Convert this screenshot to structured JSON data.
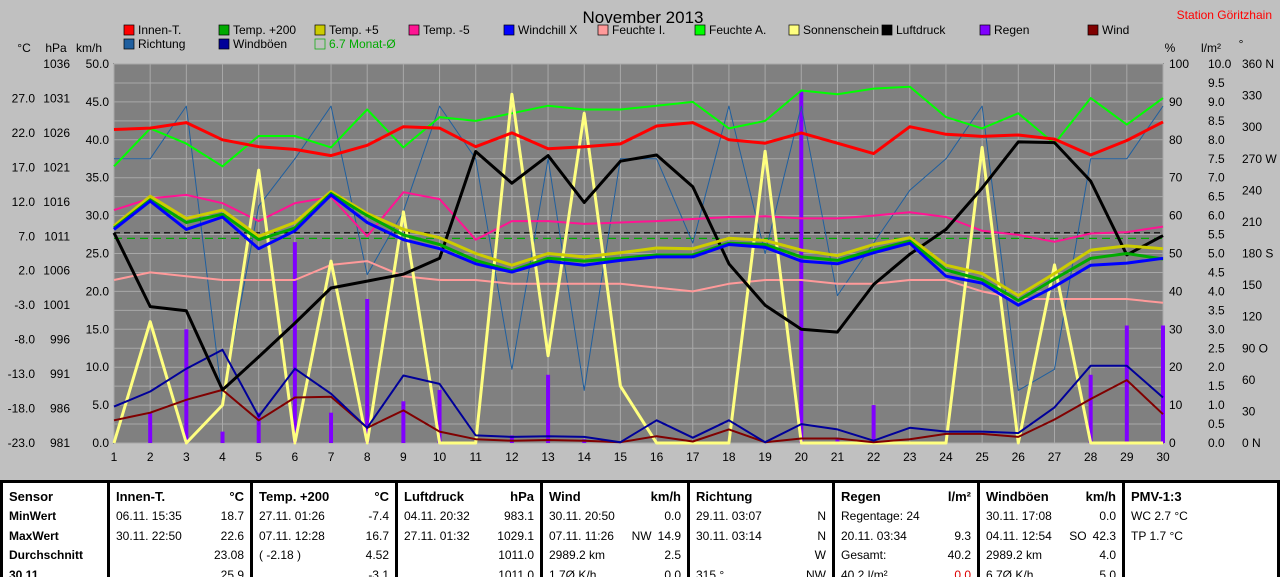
{
  "station": "Station Göritzhain",
  "chart_data": {
    "type": "line",
    "title": "November 2013",
    "days": [
      1,
      2,
      3,
      4,
      5,
      6,
      7,
      8,
      9,
      10,
      11,
      12,
      13,
      14,
      15,
      16,
      17,
      18,
      19,
      20,
      21,
      22,
      23,
      24,
      25,
      26,
      27,
      28,
      29,
      30
    ],
    "axes": {
      "celsius": {
        "label": "°C",
        "min": -23,
        "max": 32,
        "ticks": [
          "27.0",
          "22.0",
          "17.0",
          "12.0",
          "7.0",
          "2.0",
          "-3.0",
          "-8.0",
          "-13.0",
          "-18.0",
          "-23.0"
        ]
      },
      "hpa": {
        "label": "hPa",
        "min": 981,
        "max": 1036,
        "ticks": [
          "1036",
          "1031",
          "1026",
          "1021",
          "1016",
          "1011",
          "1006",
          "1001",
          "996",
          "991",
          "986",
          "981"
        ]
      },
      "kmh": {
        "label": "km/h",
        "min": 0,
        "max": 50,
        "ticks": [
          "50.0",
          "45.0",
          "40.0",
          "35.0",
          "30.0",
          "25.0",
          "20.0",
          "15.0",
          "10.0",
          "5.0",
          "0.0"
        ]
      },
      "percent": {
        "label": "%",
        "min": 0,
        "max": 100,
        "ticks": [
          "100",
          "90",
          "80",
          "70",
          "60",
          "50",
          "40",
          "30",
          "20",
          "10",
          "0"
        ]
      },
      "rain": {
        "label": "l/m²",
        "min": 0,
        "max": 10,
        "ticks": [
          "10.0",
          "9.5",
          "9.0",
          "8.5",
          "8.0",
          "7.5",
          "7.0",
          "6.5",
          "6.0",
          "5.5",
          "5.0",
          "4.5",
          "4.0",
          "3.5",
          "3.0",
          "2.5",
          "2.0",
          "1.5",
          "1.0",
          "0.5",
          "0.0"
        ]
      },
      "direction": {
        "label": "°",
        "min": 0,
        "max": 360,
        "ticks": [
          "360 N",
          "330",
          "300",
          "270 W",
          "240",
          "210",
          "180 S",
          "150",
          "120",
          "90 O",
          "60",
          "30",
          "0 N"
        ]
      }
    },
    "legend": [
      {
        "name": "Innen-T.",
        "color": "#ff0000"
      },
      {
        "name": "Temp. +200",
        "color": "#00aa00"
      },
      {
        "name": "Temp. +5",
        "color": "#cccc00"
      },
      {
        "name": "Temp. -5",
        "color": "#ff1493"
      },
      {
        "name": "Windchill X",
        "color": "#0000ff"
      },
      {
        "name": "Feuchte I.",
        "color": "#ff9a9a"
      },
      {
        "name": "Feuchte A.",
        "color": "#00ff00"
      },
      {
        "name": "Sonnenschein",
        "color": "#ffff80"
      },
      {
        "name": "Luftdruck",
        "color": "#000000"
      },
      {
        "name": "Regen",
        "color": "#8000ff"
      },
      {
        "name": "Wind",
        "color": "#800000"
      },
      {
        "name": "Richtung",
        "color": "#1f5f9f"
      },
      {
        "name": "Windböen",
        "color": "#000099"
      },
      {
        "name": "6.7 Monat-Ø",
        "color": "#00aa00"
      }
    ],
    "series": [
      {
        "name": "Innen-T.",
        "axis": "celsius",
        "color": "#ff0000",
        "width": 3,
        "values": [
          22.5,
          22.7,
          23.5,
          21.0,
          20.0,
          19.6,
          18.7,
          20.2,
          22.9,
          22.7,
          20.0,
          22.0,
          19.7,
          20.0,
          20.4,
          23.0,
          23.5,
          21.0,
          20.5,
          22.0,
          20.5,
          19.0,
          22.9,
          21.8,
          21.5,
          21.7,
          21.1,
          18.8,
          20.9,
          23.6
        ]
      },
      {
        "name": "Feuchte A.",
        "axis": "percent",
        "color": "#00ff00",
        "width": 2,
        "values": [
          73,
          83,
          79,
          73,
          81,
          81,
          78,
          88,
          78,
          86,
          85,
          87,
          89,
          88,
          88,
          89,
          90,
          83,
          85,
          93,
          92,
          93.5,
          94,
          86,
          83,
          87,
          79,
          91,
          84,
          91
        ]
      },
      {
        "name": "Temp. +5",
        "axis": "celsius",
        "color": "#cccc00",
        "width": 3,
        "values": [
          8.5,
          12.8,
          9.6,
          10.8,
          7.0,
          9.0,
          13.5,
          10.3,
          8.0,
          6.8,
          4.5,
          2.8,
          4.5,
          4.0,
          4.6,
          5.3,
          5.2,
          6.7,
          6.4,
          5.0,
          4.2,
          5.8,
          6.8,
          2.8,
          1.6,
          -1.6,
          1.6,
          5.0,
          5.6,
          5.2
        ]
      },
      {
        "name": "Temp. +200",
        "axis": "celsius",
        "color": "#00aa00",
        "width": 3,
        "values": [
          8.2,
          12.3,
          9.0,
          10.2,
          6.5,
          8.2,
          13.2,
          10.0,
          7.2,
          5.8,
          3.5,
          2.0,
          3.8,
          3.4,
          3.8,
          4.3,
          4.3,
          6.0,
          5.8,
          4.0,
          3.5,
          5.0,
          6.3,
          2.1,
          0.7,
          -2.3,
          0.8,
          3.8,
          4.5,
          3.7
        ]
      },
      {
        "name": "Windchill X",
        "axis": "celsius",
        "color": "#0000ff",
        "width": 3,
        "values": [
          8.0,
          12.1,
          8.0,
          9.8,
          5.2,
          7.8,
          13.0,
          9.0,
          6.5,
          5.2,
          3.0,
          1.8,
          3.4,
          2.8,
          3.5,
          4.0,
          4.0,
          5.8,
          5.4,
          3.4,
          3.0,
          4.6,
          6.0,
          1.2,
          0.2,
          -3.0,
          -0.3,
          2.8,
          3.1,
          3.8
        ]
      },
      {
        "name": "Temp. -5",
        "axis": "celsius",
        "color": "#ff1493",
        "width": 2,
        "values": [
          10.8,
          12.5,
          13.0,
          11.8,
          9.2,
          11.8,
          12.7,
          7.0,
          13.4,
          12.4,
          6.5,
          9.2,
          9.2,
          8.8,
          9.0,
          9.2,
          9.5,
          9.8,
          9.9,
          9.6,
          9.6,
          10.0,
          10.5,
          9.8,
          7.8,
          7.2,
          6.2,
          7.4,
          7.6,
          8.4
        ]
      },
      {
        "name": "Feuchte I.",
        "axis": "percent",
        "color": "#ff9a9a",
        "width": 2,
        "values": [
          43,
          45,
          44,
          43,
          43,
          43,
          47,
          48,
          44,
          43,
          43,
          42,
          42,
          42,
          42,
          41,
          40,
          42,
          43,
          43,
          42,
          42,
          43,
          43,
          40,
          38,
          38,
          38,
          38,
          37
        ]
      },
      {
        "name": "Luftdruck",
        "axis": "hpa",
        "color": "#000000",
        "width": 3,
        "values": [
          1011.5,
          1000.8,
          1000.2,
          988.7,
          993.5,
          998.4,
          1003.5,
          1004.5,
          1005.5,
          1007.8,
          1023.3,
          1018.7,
          1022.7,
          1015.9,
          1021.9,
          1022.8,
          1018.2,
          1007.0,
          1001.0,
          997.5,
          997.1,
          1004.0,
          1008.4,
          1012.0,
          1018.0,
          1024.7,
          1024.6,
          1019.0,
          1008.3,
          1011.1
        ]
      },
      {
        "name": "Sonnenschein",
        "axis": "rain",
        "color": "#ffff80",
        "width": 3,
        "values": [
          0.0,
          3.2,
          0.0,
          1.0,
          7.2,
          0.0,
          4.8,
          0.0,
          6.1,
          0.0,
          0.0,
          9.2,
          2.3,
          8.7,
          1.5,
          0.0,
          0.0,
          0.0,
          7.7,
          0.0,
          0.0,
          0.0,
          0.0,
          0.0,
          7.8,
          0.0,
          4.7,
          0.0,
          0.0,
          0.0
        ]
      },
      {
        "name": "Richtung",
        "axis": "direction",
        "color": "#1f5f9f",
        "width": 1,
        "values": [
          270,
          270,
          320,
          40,
          225,
          270,
          320,
          160,
          220,
          320,
          270,
          70,
          270,
          50,
          270,
          270,
          190,
          320,
          180,
          320,
          140,
          190,
          240,
          270,
          320,
          50,
          70,
          270,
          270,
          320
        ]
      },
      {
        "name": "Windböen",
        "axis": "kmh",
        "color": "#000099",
        "width": 2,
        "values": [
          4.8,
          6.8,
          9.8,
          12.3,
          3.5,
          9.8,
          6.5,
          2.0,
          8.9,
          7.8,
          1.0,
          0.8,
          0.9,
          0.8,
          0.1,
          3.0,
          0.7,
          3.0,
          0.1,
          2.5,
          1.8,
          0.3,
          2.0,
          1.5,
          1.5,
          1.3,
          4.7,
          10.2,
          10.2,
          6.0
        ]
      },
      {
        "name": "Wind",
        "axis": "kmh",
        "color": "#800000",
        "width": 2,
        "values": [
          3.0,
          4.0,
          5.7,
          7.0,
          3.0,
          6.0,
          6.1,
          2.0,
          4.3,
          1.5,
          0.5,
          0.3,
          0.4,
          0.3,
          0.1,
          0.9,
          0.2,
          1.8,
          0.1,
          0.6,
          0.6,
          0.1,
          0.5,
          1.2,
          1.2,
          0.8,
          3.1,
          5.8,
          8.3,
          3.8
        ]
      }
    ],
    "rain_bars": {
      "name": "Regen",
      "axis": "rain",
      "color": "#8000ff",
      "values": [
        0.0,
        0.8,
        3.0,
        0.3,
        0.8,
        5.3,
        0.8,
        3.8,
        1.1,
        1.4,
        0.0,
        0.2,
        1.8,
        0.1,
        0.0,
        0.0,
        0.0,
        0.0,
        0.0,
        9.3,
        0.1,
        1.0,
        0.0,
        0.0,
        0.0,
        0.0,
        0.0,
        1.8,
        3.1,
        3.1
      ]
    },
    "reference_lines": [
      {
        "axis": "celsius",
        "value": 6.7,
        "color": "#00aa00",
        "dash": "8,5"
      },
      {
        "axis": "celsius",
        "value": 7.5,
        "color": "#000000",
        "dash": "6,4"
      }
    ]
  },
  "stats": {
    "rows": [
      "Sensor",
      "MinWert",
      "MaxWert",
      "Durchschnitt",
      "30.11."
    ],
    "panels": [
      {
        "title": "Innen-T.",
        "unit": "°C",
        "rows": [
          [
            "06.11. 15:35",
            "",
            "18.7"
          ],
          [
            "30.11. 22:50",
            "",
            "22.6"
          ],
          [
            "",
            "",
            "23.08"
          ],
          [
            "",
            "",
            "25.9"
          ]
        ]
      },
      {
        "title": "Temp. +200",
        "unit": "°C",
        "rows": [
          [
            "27.11. 01:26",
            "",
            "-7.4"
          ],
          [
            "07.11. 12:28",
            "",
            "16.7"
          ],
          [
            "( -2.18 )",
            "",
            "4.52"
          ],
          [
            "",
            "",
            "-3.1"
          ]
        ]
      },
      {
        "title": "Luftdruck",
        "unit": "hPa",
        "rows": [
          [
            "04.11. 20:32",
            "",
            "983.1"
          ],
          [
            "27.11. 01:32",
            "",
            "1029.1"
          ],
          [
            "",
            "",
            "1011.0"
          ],
          [
            "",
            "",
            "1011.0"
          ]
        ]
      },
      {
        "title": "Wind",
        "unit": "km/h",
        "rows": [
          [
            "30.11. 20:50",
            "",
            "0.0"
          ],
          [
            "07.11. 11:26",
            "NW",
            "14.9"
          ],
          [
            "2989.2 km",
            "",
            "2.5"
          ],
          [
            "1.7Ø K/h",
            "",
            "0.0"
          ]
        ]
      },
      {
        "title": "Richtung",
        "unit": "",
        "rows": [
          [
            "29.11. 03:07",
            "",
            "N"
          ],
          [
            "30.11. 03:14",
            "",
            "N"
          ],
          [
            "",
            "",
            "W"
          ],
          [
            "315 °",
            "",
            "NW"
          ]
        ]
      },
      {
        "title": "Regen",
        "unit": "l/m²",
        "rows": [
          [
            "Regentage: 24",
            "",
            ""
          ],
          [
            "20.11. 03:34",
            "",
            "9.3"
          ],
          [
            "Gesamt:",
            "",
            "40.2"
          ],
          [
            "40.2 l/m²",
            "",
            "0.0"
          ]
        ]
      },
      {
        "title": "Windböen",
        "unit": "km/h",
        "rows": [
          [
            "30.11. 17:08",
            "",
            "0.0"
          ],
          [
            "04.11. 12:54",
            "SO",
            "42.3"
          ],
          [
            "2989.2 km",
            "",
            "4.0"
          ],
          [
            "6.7Ø K/h",
            "",
            "5.0"
          ]
        ]
      },
      {
        "title": "PMV-1:3",
        "unit": "",
        "rows": [
          [
            "WC 2.7 °C",
            "",
            ""
          ],
          [
            "TP 1.7 °C",
            "",
            ""
          ],
          [
            "",
            "",
            ""
          ],
          [
            "",
            "",
            ""
          ]
        ]
      }
    ]
  }
}
